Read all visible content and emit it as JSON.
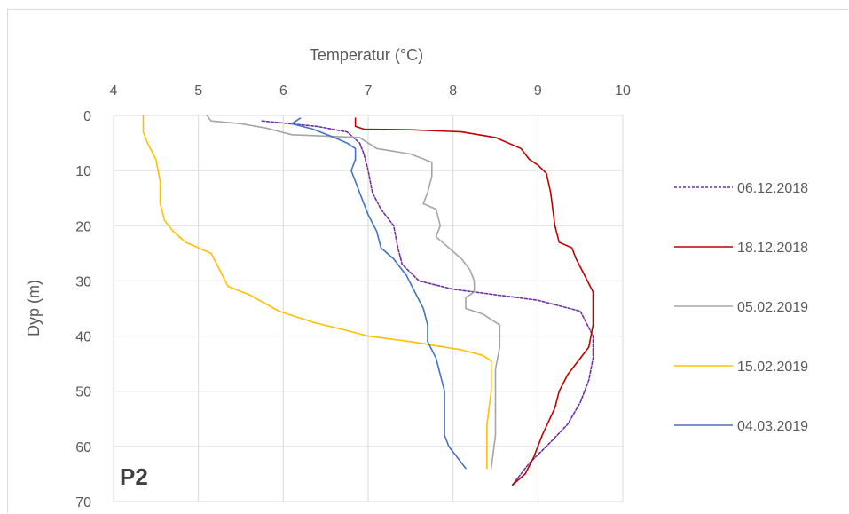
{
  "chart_data": {
    "type": "line",
    "title": "",
    "xlabel": "Temperatur (°C)",
    "ylabel": "Dyp (m)",
    "panel_label": "P2",
    "xlim": [
      4,
      10
    ],
    "ylim": [
      0,
      70
    ],
    "y_inverted": true,
    "x_axis_position": "top",
    "grid": true,
    "legend_position": "right",
    "x_ticks": [
      4,
      5,
      6,
      7,
      8,
      9,
      10
    ],
    "y_ticks": [
      0,
      10,
      20,
      30,
      40,
      50,
      60,
      70
    ],
    "series": [
      {
        "name": "06.12.2018",
        "color": "#7030a0",
        "dash": "dashed",
        "points": [
          [
            5.75,
            1
          ],
          [
            6.4,
            2
          ],
          [
            6.75,
            3
          ],
          [
            6.9,
            5
          ],
          [
            6.95,
            7
          ],
          [
            7.0,
            10
          ],
          [
            7.05,
            14
          ],
          [
            7.15,
            17
          ],
          [
            7.3,
            20
          ],
          [
            7.35,
            24
          ],
          [
            7.4,
            27
          ],
          [
            7.6,
            30
          ],
          [
            8.0,
            31.5
          ],
          [
            8.5,
            32.5
          ],
          [
            9.0,
            33.5
          ],
          [
            9.5,
            35.5
          ],
          [
            9.65,
            40
          ],
          [
            9.65,
            44
          ],
          [
            9.6,
            48
          ],
          [
            9.5,
            52
          ],
          [
            9.35,
            56
          ],
          [
            9.1,
            60
          ],
          [
            8.9,
            63
          ],
          [
            8.7,
            67
          ]
        ]
      },
      {
        "name": "18.12.2018",
        "color": "#c00000",
        "dash": "solid",
        "points": [
          [
            6.85,
            0.5
          ],
          [
            6.85,
            2
          ],
          [
            6.95,
            2.5
          ],
          [
            7.5,
            2.6
          ],
          [
            8.1,
            3
          ],
          [
            8.5,
            4
          ],
          [
            8.8,
            6
          ],
          [
            8.9,
            8
          ],
          [
            9.0,
            9
          ],
          [
            9.1,
            10.5
          ],
          [
            9.15,
            14
          ],
          [
            9.2,
            20
          ],
          [
            9.25,
            23
          ],
          [
            9.4,
            24
          ],
          [
            9.45,
            26
          ],
          [
            9.55,
            29
          ],
          [
            9.65,
            32
          ],
          [
            9.65,
            35
          ],
          [
            9.65,
            38
          ],
          [
            9.6,
            42
          ],
          [
            9.45,
            45
          ],
          [
            9.35,
            47
          ],
          [
            9.25,
            50
          ],
          [
            9.2,
            53
          ],
          [
            9.05,
            58
          ],
          [
            8.95,
            62
          ],
          [
            8.85,
            65
          ],
          [
            8.7,
            67
          ]
        ]
      },
      {
        "name": "05.02.2019",
        "color": "#a5a5a5",
        "dash": "solid",
        "points": [
          [
            5.1,
            0
          ],
          [
            5.15,
            1
          ],
          [
            5.5,
            1.5
          ],
          [
            5.8,
            2.3
          ],
          [
            6.1,
            3.5
          ],
          [
            6.9,
            4
          ],
          [
            7.1,
            6
          ],
          [
            7.5,
            7
          ],
          [
            7.75,
            8.5
          ],
          [
            7.75,
            11
          ],
          [
            7.7,
            14
          ],
          [
            7.65,
            16
          ],
          [
            7.8,
            17
          ],
          [
            7.85,
            20
          ],
          [
            7.8,
            22
          ],
          [
            7.95,
            24
          ],
          [
            8.1,
            26
          ],
          [
            8.2,
            28
          ],
          [
            8.25,
            30
          ],
          [
            8.25,
            32
          ],
          [
            8.15,
            33
          ],
          [
            8.15,
            35
          ],
          [
            8.35,
            36
          ],
          [
            8.55,
            38
          ],
          [
            8.55,
            42
          ],
          [
            8.5,
            46
          ],
          [
            8.5,
            52
          ],
          [
            8.5,
            58
          ],
          [
            8.45,
            64
          ]
        ]
      },
      {
        "name": "15.02.2019",
        "color": "#ffc000",
        "dash": "solid",
        "points": [
          [
            4.35,
            0
          ],
          [
            4.35,
            3
          ],
          [
            4.4,
            5
          ],
          [
            4.5,
            8
          ],
          [
            4.55,
            12
          ],
          [
            4.55,
            16
          ],
          [
            4.6,
            19
          ],
          [
            4.7,
            21
          ],
          [
            4.85,
            23
          ],
          [
            5.15,
            25
          ],
          [
            5.25,
            28
          ],
          [
            5.35,
            31
          ],
          [
            5.6,
            32.5
          ],
          [
            5.95,
            35.5
          ],
          [
            6.35,
            37.5
          ],
          [
            6.75,
            39
          ],
          [
            7.0,
            40
          ],
          [
            7.5,
            41
          ],
          [
            8.1,
            42.5
          ],
          [
            8.35,
            43.5
          ],
          [
            8.45,
            44.5
          ],
          [
            8.45,
            50
          ],
          [
            8.4,
            56
          ],
          [
            8.4,
            64
          ]
        ]
      },
      {
        "name": "04.03.2019",
        "color": "#4472c4",
        "dash": "solid",
        "points": [
          [
            6.2,
            0.5
          ],
          [
            6.1,
            1.5
          ],
          [
            6.35,
            2.5
          ],
          [
            6.6,
            4
          ],
          [
            6.75,
            5
          ],
          [
            6.85,
            6
          ],
          [
            6.85,
            8
          ],
          [
            6.8,
            10
          ],
          [
            6.9,
            14
          ],
          [
            7.0,
            18
          ],
          [
            7.1,
            21
          ],
          [
            7.15,
            24
          ],
          [
            7.3,
            26
          ],
          [
            7.45,
            29
          ],
          [
            7.55,
            32
          ],
          [
            7.65,
            35
          ],
          [
            7.7,
            38
          ],
          [
            7.7,
            41
          ],
          [
            7.8,
            44
          ],
          [
            7.85,
            47
          ],
          [
            7.9,
            50
          ],
          [
            7.9,
            54
          ],
          [
            7.9,
            56
          ],
          [
            7.9,
            58
          ],
          [
            7.95,
            60
          ],
          [
            8.05,
            62
          ],
          [
            8.15,
            64
          ]
        ]
      }
    ]
  }
}
